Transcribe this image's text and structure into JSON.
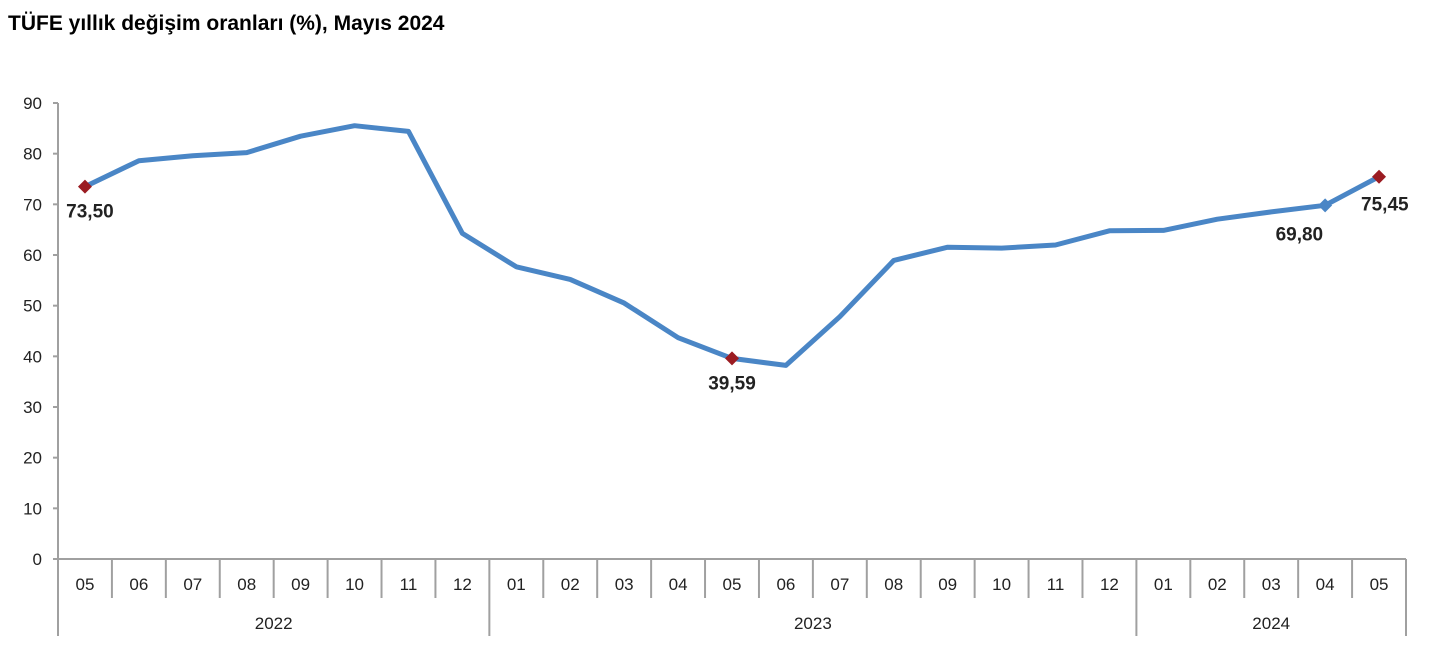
{
  "chart_data": {
    "type": "line",
    "title": "TÜFE yıllık değişim oranları (%), Mayıs 2024",
    "xlabel": "",
    "ylabel": "",
    "ylim": [
      0,
      90
    ],
    "yticks": [
      0,
      10,
      20,
      30,
      40,
      50,
      60,
      70,
      80,
      90
    ],
    "grid": false,
    "categories": [
      "05",
      "06",
      "07",
      "08",
      "09",
      "10",
      "11",
      "12",
      "01",
      "02",
      "03",
      "04",
      "05",
      "06",
      "07",
      "08",
      "09",
      "10",
      "11",
      "12",
      "01",
      "02",
      "03",
      "04",
      "05"
    ],
    "year_groups": [
      {
        "label": "2022",
        "count": 8
      },
      {
        "label": "2023",
        "count": 12
      },
      {
        "label": "2024",
        "count": 5
      }
    ],
    "series": [
      {
        "name": "TÜFE",
        "color": "#4a86c6",
        "values": [
          73.5,
          78.62,
          79.6,
          80.21,
          83.45,
          85.51,
          84.39,
          64.27,
          57.68,
          55.18,
          50.51,
          43.68,
          39.59,
          38.21,
          47.83,
          58.94,
          61.53,
          61.36,
          61.98,
          64.77,
          64.86,
          67.07,
          68.5,
          69.8,
          75.45
        ]
      }
    ],
    "annotations": [
      {
        "index": 0,
        "label": "73,50",
        "marker_color": "#9b1c22",
        "pos": "below"
      },
      {
        "index": 12,
        "label": "39,59",
        "marker_color": "#9b1c22",
        "pos": "below"
      },
      {
        "index": 23,
        "label": "69,80",
        "marker_color": "#4a86c6",
        "pos": "below-left"
      },
      {
        "index": 24,
        "label": "75,45",
        "marker_color": "#9b1c22",
        "pos": "below-right"
      }
    ]
  }
}
